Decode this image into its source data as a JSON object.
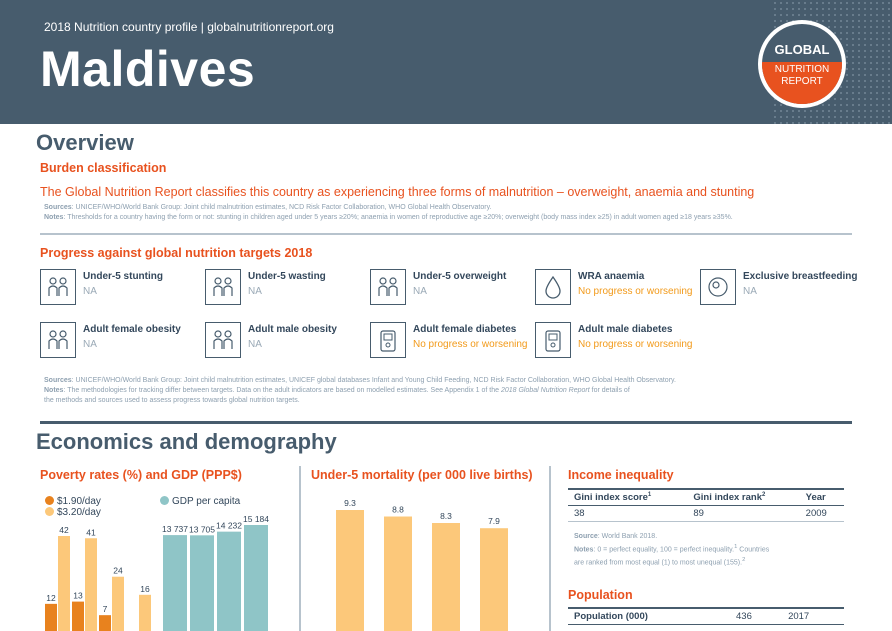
{
  "header": {
    "subtitle": "2018 Nutrition country profile  |  globalnutritionreport.org",
    "country": "Maldives",
    "logo": {
      "line1": "GLOBAL",
      "line2": "NUTRITION",
      "line3": "REPORT"
    }
  },
  "overview": {
    "title": "Overview",
    "burden_title": "Burden classification",
    "burden_text": "The Global Nutrition Report classifies this country as experiencing three forms of malnutrition – overweight, anaemia and stunting",
    "sources_label": "Sources",
    "sources": ": UNICEF/WHO/World Bank Group: Joint child malnutrition estimates, NCD Risk Factor Collaboration, WHO Global Health Observatory.",
    "notes_label": "Notes",
    "notes": ": Thresholds for a country having the form or not: stunting in children aged under 5 years ≥20%; anaemia in women of reproductive age ≥20%; overweight (body mass index ≥25) in adult women aged ≥18 years ≥35%."
  },
  "progress": {
    "title": "Progress against global nutrition targets 2018",
    "tiles": [
      {
        "label": "Under-5 stunting",
        "status": "NA",
        "icon": "child-pair-icon"
      },
      {
        "label": "Under-5 wasting",
        "status": "NA",
        "icon": "child-pair-icon"
      },
      {
        "label": "Under-5 overweight",
        "status": "NA",
        "icon": "child-pair-icon"
      },
      {
        "label": "WRA anaemia",
        "status": "No progress or worsening",
        "icon": "blood-drop-icon"
      },
      {
        "label": "Exclusive breastfeeding",
        "status": "NA",
        "icon": "breastfeeding-icon"
      },
      {
        "label": "Adult female obesity",
        "status": "NA",
        "icon": "adult-pair-icon"
      },
      {
        "label": "Adult male obesity",
        "status": "NA",
        "icon": "adult-pair-icon"
      },
      {
        "label": "Adult female diabetes",
        "status": "No progress or worsening",
        "icon": "glucose-meter-icon"
      },
      {
        "label": "Adult male diabetes",
        "status": "No progress or worsening",
        "icon": "glucose-meter-icon"
      }
    ],
    "sources_label": "Sources",
    "sources": ": UNICEF/WHO/World Bank Group: Joint child malnutrition estimates, UNICEF global databases Infant and Young Child Feeding, NCD Risk Factor Collaboration, WHO Global Health Observatory.",
    "notes_label": "Notes",
    "notes_a": ": The methodologies for tracking differ between targets. Data on the adult indicators are based on modelled estimates. See Appendix 1 of the ",
    "notes_italic": "2018 Global Nutrition Report",
    "notes_b": " for details of",
    "notes_line2": "the methods and sources used to assess progress towards global nutrition targets."
  },
  "economics": {
    "title": "Economics and demography",
    "income": {
      "title": "Income inequality",
      "headers": [
        "Gini index score",
        "Gini index rank",
        "Year"
      ],
      "sup": [
        "1",
        "2",
        ""
      ],
      "values": [
        "38",
        "89",
        "2009"
      ],
      "source_label": "Source",
      "source": ": World Bank 2018.",
      "notes_label": "Notes",
      "notes_line1": ": 0 = perfect equality, 100 = perfect inequality.",
      "notes_sup1": "1",
      "notes_line1b": " Countries",
      "notes_line2": "are ranked from most equal (1) to most unequal (155).",
      "notes_sup2": "2"
    },
    "population": {
      "title": "Population",
      "label": "Population (000)",
      "value": "436",
      "year": "2017"
    }
  },
  "chart_data": [
    {
      "type": "bar",
      "title": "Poverty rates (%) and GDP (PPP$)",
      "categories": [
        "",
        "",
        "",
        ""
      ],
      "series": [
        {
          "name": "$1.90/day",
          "values": [
            12,
            13,
            7,
            null
          ],
          "color": "#e8821e"
        },
        {
          "name": "$3.20/day",
          "values": [
            42,
            41,
            24,
            16
          ],
          "color": "#fcc87a"
        },
        {
          "name": "GDP per capita",
          "values": [
            13737,
            13705,
            14232,
            15184
          ],
          "color": "#8fc5c7"
        }
      ],
      "labels": {
        "poverty_low": [
          "12",
          "13",
          "7",
          ""
        ],
        "poverty_high": [
          "42",
          "41",
          "24",
          "16"
        ],
        "gdp": [
          "13 737",
          "13 705",
          "14 232",
          "15 184"
        ]
      },
      "legend": [
        "$1.90/day",
        "$3.20/day",
        "GDP per capita"
      ]
    },
    {
      "type": "bar",
      "title": "Under-5 mortality (per 000 live births)",
      "categories": [
        "",
        "",
        "",
        ""
      ],
      "values": [
        9.3,
        8.8,
        8.3,
        7.9
      ],
      "labels": [
        "9.3",
        "8.8",
        "8.3",
        "7.9"
      ],
      "color": "#fcc87a"
    }
  ]
}
